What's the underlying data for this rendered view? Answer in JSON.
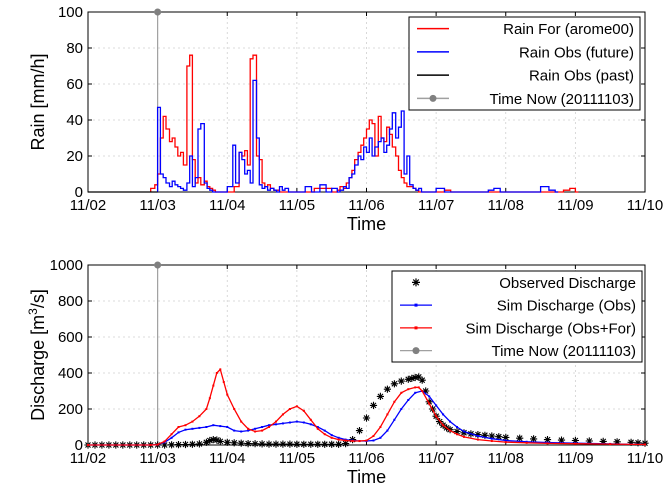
{
  "chart_data": [
    {
      "type": "line",
      "title": "",
      "xlabel": "Time",
      "ylabel": "Rain [mm/h]",
      "xlim": [
        0,
        8
      ],
      "ylim": [
        0,
        100
      ],
      "x_ticks": [
        0,
        1,
        2,
        3,
        4,
        5,
        6,
        7,
        8
      ],
      "x_tick_labels": [
        "11/02",
        "11/03",
        "11/04",
        "11/05",
        "11/06",
        "11/07",
        "11/08",
        "11/09",
        "11/10"
      ],
      "y_ticks": [
        0,
        20,
        40,
        60,
        80,
        100
      ],
      "y_tick_labels": [
        "0",
        "20",
        "40",
        "60",
        "80",
        "100"
      ],
      "grid": true,
      "legend_placement": "top-right",
      "legend": [
        "Rain For (arome00)",
        "Rain Obs (future)",
        "Rain Obs (past)",
        "Time Now (20111103)"
      ],
      "colors": {
        "rain_for": "#ff0000",
        "rain_obs_future": "#0000ff",
        "rain_obs_past": "#000000",
        "time_now": "#a0a0a0",
        "time_now_marker": "#808080"
      },
      "time_now": {
        "x": 1.0,
        "y": 100
      },
      "series": [
        {
          "name": "Rain For (arome00)",
          "step": true,
          "x": [
            0.9,
            0.96,
            1.0,
            1.04,
            1.08,
            1.12,
            1.17,
            1.21,
            1.25,
            1.29,
            1.33,
            1.37,
            1.42,
            1.46,
            1.5,
            1.54,
            1.58,
            1.62,
            1.67,
            1.71,
            1.75,
            1.79,
            1.83,
            2.1,
            2.17,
            2.21,
            2.25,
            2.29,
            2.33,
            2.37,
            2.42,
            2.46,
            2.5,
            2.54,
            2.58,
            2.62,
            2.67,
            2.71,
            2.75,
            3.25,
            3.5,
            3.58,
            3.62,
            3.67,
            3.71,
            3.75,
            3.79,
            3.83,
            3.88,
            3.92,
            3.96,
            4.0,
            4.04,
            4.08,
            4.12,
            4.17,
            4.21,
            4.25,
            4.29,
            4.33,
            4.37,
            4.42,
            4.46,
            4.5,
            4.54,
            4.58,
            4.62,
            4.67,
            4.71,
            4.75,
            5.12,
            5.21,
            6.83,
            6.92,
            7.0
          ],
          "y": [
            2,
            4,
            10,
            30,
            42,
            35,
            28,
            30,
            25,
            20,
            22,
            15,
            70,
            76,
            18,
            5,
            8,
            4,
            6,
            3,
            2,
            1,
            0,
            3,
            22,
            20,
            23,
            15,
            74,
            76,
            20,
            18,
            5,
            3,
            4,
            2,
            1,
            1,
            0,
            2,
            0,
            1,
            3,
            2,
            5,
            8,
            12,
            18,
            22,
            26,
            30,
            35,
            40,
            38,
            20,
            42,
            30,
            28,
            36,
            32,
            25,
            20,
            12,
            8,
            5,
            3,
            3,
            2,
            1,
            0,
            1,
            0,
            1,
            2,
            0
          ]
        },
        {
          "name": "Rain Obs (future)",
          "step": true,
          "x": [
            1.0,
            1.04,
            1.08,
            1.12,
            1.17,
            1.21,
            1.25,
            1.29,
            1.33,
            1.37,
            1.42,
            1.46,
            1.5,
            1.54,
            1.58,
            1.62,
            1.67,
            1.71,
            1.75,
            1.79,
            1.83,
            2.0,
            2.08,
            2.12,
            2.17,
            2.21,
            2.25,
            2.29,
            2.33,
            2.37,
            2.42,
            2.46,
            2.5,
            2.54,
            2.58,
            2.62,
            2.67,
            2.71,
            2.75,
            2.79,
            2.83,
            2.88,
            3.12,
            3.21,
            3.33,
            3.42,
            3.5,
            3.58,
            3.62,
            3.67,
            3.71,
            3.75,
            3.79,
            3.83,
            3.88,
            3.92,
            3.96,
            4.0,
            4.04,
            4.08,
            4.12,
            4.17,
            4.21,
            4.25,
            4.29,
            4.33,
            4.37,
            4.42,
            4.46,
            4.5,
            4.54,
            4.58,
            4.62,
            4.67,
            4.71,
            4.75,
            4.79,
            5.0,
            5.12,
            5.75,
            5.83,
            5.92,
            6.5,
            6.62,
            6.71
          ],
          "y": [
            47,
            10,
            8,
            5,
            3,
            6,
            4,
            3,
            2,
            1,
            5,
            20,
            3,
            8,
            35,
            38,
            5,
            2,
            1,
            0,
            0,
            3,
            26,
            5,
            22,
            18,
            10,
            12,
            5,
            62,
            30,
            4,
            2,
            3,
            1,
            2,
            1,
            0,
            3,
            1,
            2,
            0,
            3,
            0,
            4,
            0,
            2,
            0,
            1,
            3,
            2,
            8,
            10,
            15,
            20,
            18,
            25,
            22,
            30,
            20,
            25,
            28,
            30,
            22,
            26,
            35,
            44,
            30,
            36,
            45,
            10,
            20,
            4,
            2,
            1,
            2,
            0,
            2,
            0,
            1,
            2,
            0,
            3,
            1,
            0
          ]
        },
        {
          "name": "Rain Obs (past)",
          "step": false,
          "x": [
            0,
            1
          ],
          "y": [
            0,
            0
          ]
        }
      ]
    },
    {
      "type": "line",
      "title": "",
      "xlabel": "Time",
      "ylabel_main": "Discharge [m",
      "ylabel_sup": "3",
      "ylabel_tail": "/s]",
      "xlim": [
        0,
        8
      ],
      "ylim": [
        0,
        1000
      ],
      "x_ticks": [
        0,
        1,
        2,
        3,
        4,
        5,
        6,
        7,
        8
      ],
      "x_tick_labels": [
        "11/02",
        "11/03",
        "11/04",
        "11/05",
        "11/06",
        "11/07",
        "11/08",
        "11/09",
        "11/10"
      ],
      "y_ticks": [
        0,
        200,
        400,
        600,
        800,
        1000
      ],
      "y_tick_labels": [
        "0",
        "200",
        "400",
        "600",
        "800",
        "1000"
      ],
      "grid": true,
      "legend_placement": "top-right",
      "legend": [
        "Observed Discharge",
        "Sim Discharge (Obs)",
        "Sim Discharge (Obs+For)",
        "Time Now (20111103)"
      ],
      "colors": {
        "observed": "#000000",
        "sim_obs": "#0000ff",
        "sim_obs_for": "#ff0000",
        "time_now": "#a0a0a0",
        "time_now_marker": "#808080"
      },
      "time_now": {
        "x": 1.0,
        "y": 1000
      },
      "series": [
        {
          "name": "Observed Discharge",
          "marker": "star",
          "x": [
            0,
            0.1,
            0.2,
            0.3,
            0.4,
            0.5,
            0.6,
            0.7,
            0.8,
            0.9,
            1.0,
            1.1,
            1.2,
            1.3,
            1.4,
            1.5,
            1.6,
            1.7,
            1.75,
            1.8,
            1.85,
            1.9,
            2.0,
            2.1,
            2.2,
            2.3,
            2.4,
            2.5,
            2.6,
            2.7,
            2.8,
            2.9,
            3.0,
            3.1,
            3.2,
            3.3,
            3.4,
            3.5,
            3.6,
            3.7,
            3.8,
            3.9,
            4.0,
            4.1,
            4.2,
            4.3,
            4.4,
            4.5,
            4.6,
            4.65,
            4.7,
            4.75,
            4.8,
            4.85,
            4.9,
            4.95,
            5.0,
            5.05,
            5.1,
            5.15,
            5.2,
            5.3,
            5.4,
            5.5,
            5.6,
            5.7,
            5.8,
            5.9,
            6.0,
            6.2,
            6.4,
            6.6,
            6.8,
            7.0,
            7.2,
            7.4,
            7.6,
            7.8,
            7.9,
            8.0
          ],
          "y": [
            0,
            0,
            0,
            0,
            0,
            0,
            0,
            0,
            0,
            0,
            0,
            0,
            1,
            2,
            3,
            4,
            6,
            15,
            25,
            30,
            28,
            20,
            15,
            12,
            10,
            8,
            7,
            6,
            5,
            5,
            5,
            5,
            4,
            4,
            4,
            4,
            4,
            4,
            4,
            8,
            30,
            80,
            150,
            220,
            270,
            310,
            340,
            355,
            365,
            370,
            375,
            378,
            360,
            300,
            240,
            200,
            160,
            130,
            110,
            95,
            85,
            75,
            68,
            62,
            58,
            54,
            50,
            46,
            42,
            38,
            34,
            30,
            27,
            25,
            22,
            20,
            18,
            15,
            12,
            10
          ]
        },
        {
          "name": "Sim Discharge (Obs)",
          "x": [
            0,
            0.9,
            1.0,
            1.1,
            1.2,
            1.3,
            1.4,
            1.5,
            1.6,
            1.7,
            1.8,
            1.9,
            2.0,
            2.1,
            2.2,
            2.3,
            2.4,
            2.5,
            2.6,
            2.7,
            2.8,
            2.9,
            3.0,
            3.1,
            3.2,
            3.3,
            3.4,
            3.5,
            3.6,
            3.7,
            3.8,
            3.9,
            4.0,
            4.1,
            4.2,
            4.3,
            4.4,
            4.5,
            4.6,
            4.7,
            4.8,
            4.9,
            5.0,
            5.1,
            5.2,
            5.3,
            5.4,
            5.6,
            5.8,
            6.0,
            6.3,
            6.6,
            7.0,
            7.5,
            8.0
          ],
          "y": [
            0,
            0,
            2,
            15,
            40,
            70,
            85,
            90,
            95,
            100,
            110,
            105,
            100,
            80,
            75,
            80,
            90,
            100,
            110,
            115,
            120,
            125,
            130,
            125,
            115,
            100,
            80,
            55,
            40,
            30,
            25,
            22,
            22,
            25,
            40,
            80,
            140,
            200,
            250,
            290,
            300,
            270,
            220,
            170,
            130,
            100,
            75,
            50,
            35,
            25,
            18,
            14,
            10,
            6,
            3
          ]
        },
        {
          "name": "Sim Discharge (Obs+For)",
          "x": [
            0,
            0.9,
            1.0,
            1.1,
            1.2,
            1.3,
            1.4,
            1.5,
            1.6,
            1.7,
            1.75,
            1.8,
            1.85,
            1.9,
            1.95,
            2.0,
            2.1,
            2.2,
            2.3,
            2.4,
            2.5,
            2.6,
            2.7,
            2.8,
            2.9,
            3.0,
            3.1,
            3.2,
            3.3,
            3.4,
            3.5,
            3.6,
            3.7,
            3.8,
            3.9,
            4.0,
            4.1,
            4.2,
            4.3,
            4.4,
            4.5,
            4.6,
            4.7,
            4.75,
            4.8,
            4.9,
            5.0,
            5.1,
            5.2,
            5.3,
            5.4,
            5.6,
            5.8,
            6.0,
            6.3,
            6.6,
            7.0,
            7.5,
            8.0
          ],
          "y": [
            0,
            0,
            2,
            20,
            60,
            100,
            110,
            130,
            160,
            200,
            260,
            330,
            400,
            420,
            350,
            280,
            200,
            130,
            90,
            75,
            80,
            100,
            130,
            170,
            200,
            215,
            190,
            140,
            90,
            60,
            40,
            30,
            25,
            22,
            22,
            25,
            50,
            100,
            170,
            240,
            290,
            310,
            320,
            320,
            300,
            230,
            160,
            110,
            80,
            60,
            45,
            30,
            22,
            16,
            12,
            9,
            7,
            5,
            3
          ]
        }
      ]
    }
  ]
}
